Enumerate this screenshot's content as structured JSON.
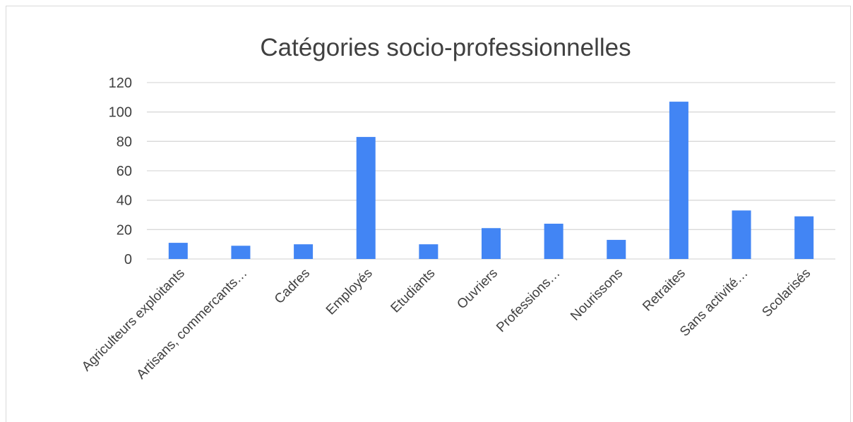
{
  "chart_data": {
    "type": "bar",
    "title": "Catégories socio-professionnelles",
    "categories": [
      "Agriculteurs exploitants",
      "Artisans, commercants…",
      "Cadres",
      "Employés",
      "Etudiants",
      "Ouvriers",
      "Professions…",
      "Nourissons",
      "Retraites",
      "Sans activité…",
      "Scolarisés"
    ],
    "values": [
      11,
      9,
      10,
      83,
      10,
      21,
      24,
      13,
      107,
      33,
      29
    ],
    "ylim": [
      0,
      120
    ],
    "yticks": [
      "0",
      "20",
      "40",
      "60",
      "80",
      "100",
      "120"
    ],
    "grid": true,
    "legend": "none",
    "bar_color": "#4285f4",
    "grid_color": "#d9d9d9",
    "text_color": "#404040"
  }
}
